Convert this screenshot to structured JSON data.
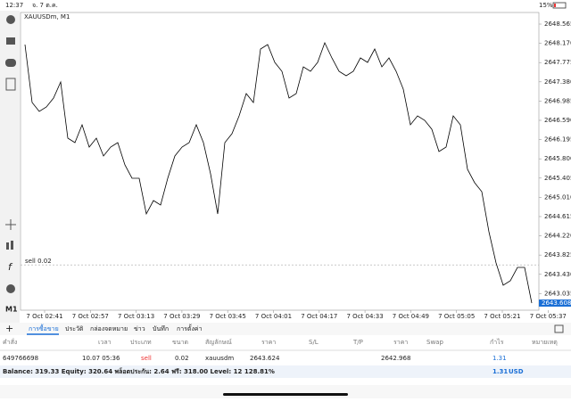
{
  "status_bar": {
    "time": "12:37",
    "date": "จ. 7 ต.ค.",
    "battery": "15%"
  },
  "chart_data": {
    "type": "line",
    "title": "XAUUSDm, M1",
    "values": [
      2648.144,
      2646.956,
      2646.773,
      2646.864,
      2647.047,
      2647.376,
      2646.224,
      2646.133,
      2646.498,
      2646.041,
      2646.224,
      2645.858,
      2646.041,
      2646.133,
      2645.675,
      2645.401,
      2645.401,
      2644.669,
      2644.944,
      2644.852,
      2645.401,
      2645.858,
      2646.041,
      2646.133,
      2646.498,
      2646.133,
      2645.492,
      2644.669,
      2646.133,
      2646.315,
      2646.681,
      2647.139,
      2646.956,
      2648.053,
      2648.144,
      2647.779,
      2647.596,
      2647.047,
      2647.139,
      2647.687,
      2647.596,
      2647.779,
      2648.181,
      2647.87,
      2647.596,
      2647.504,
      2647.596,
      2647.87,
      2647.779,
      2648.053,
      2647.687,
      2647.87,
      2647.596,
      2647.23,
      2646.498,
      2646.681,
      2646.59,
      2646.407,
      2645.95,
      2646.041,
      2646.681,
      2646.498,
      2645.584,
      2645.31,
      2645.127,
      2644.304,
      2643.663,
      2643.206,
      2643.298,
      2643.572,
      2643.572,
      2642.84
    ],
    "color": "#000000",
    "ylim": [
      2642.694,
      2648.803
    ],
    "yticks": [
      2648.565,
      {
        "value": 2648.17,
        "label": "2648.170"
      },
      2647.775,
      {
        "value": 2647.38,
        "label": "2647.380"
      },
      2646.985,
      {
        "value": 2646.59,
        "label": "2646.590"
      },
      2646.195,
      {
        "value": 2645.8,
        "label": "2645.800"
      },
      2645.405,
      {
        "value": 2645.01,
        "label": "2645.010"
      },
      2644.615,
      {
        "value": 2644.22,
        "label": "2644.220"
      },
      2643.825,
      {
        "value": 2643.43,
        "label": "2643.430"
      },
      2643.035
    ],
    "xtick_labels": [
      "7 Oct 02:41",
      "7 Oct 02:57",
      "7 Oct 03:13",
      "7 Oct 03:29",
      "7 Oct 03:45",
      "7 Oct 04:01",
      "7 Oct 04:17",
      "7 Oct 04:33",
      "7 Oct 04:49",
      "7 Oct 05:05",
      "7 Oct 05:21",
      "7 Oct 05:37"
    ],
    "order_line": {
      "label": "sell 0.02",
      "value": 2643.624
    },
    "price_label": "2643.608",
    "grid": false
  },
  "toolbar": {
    "timeframe": "M1"
  },
  "tabs": [
    "การซื้อขาย",
    "ประวัติ",
    "กล่องจดหมาย",
    "ข่าว",
    "บันทึก",
    "การตั้งค่า"
  ],
  "table": {
    "headers": [
      "คำสั่ง",
      "เวลา",
      "ประเภท",
      "ขนาด",
      "สัญลักษณ์",
      "ราคา",
      "S/L",
      "T/P",
      "ราคา",
      "Swap",
      "กำไร",
      "หมายเหตุ"
    ],
    "row": {
      "order": "649766698",
      "time": "10.07 05:36",
      "type": "sell",
      "size": "0.02",
      "symbol": "xauusdm",
      "open_price": "2643.624",
      "price": "2642.968",
      "profit": "1.31"
    }
  },
  "summary": {
    "text": "Balance: 319.33 Equity: 320.64 พล็อตประกัน: 2.64 ฟรี: 318.00 Level: 12 128.81%",
    "profit": "1.31",
    "currency": "USD"
  }
}
